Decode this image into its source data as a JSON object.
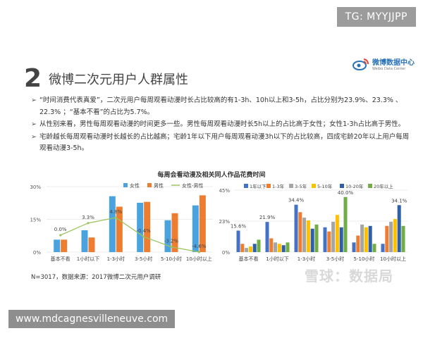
{
  "watermark_top": "TG: MYYJJPP",
  "watermark_bottom": "www.mdcagnesvilleneuve.com",
  "watermark_brand": "雪球：数据局",
  "heading": {
    "number": "2",
    "title": "微博二次元用户人群属性"
  },
  "logo": {
    "name_cn": "微博数据中心",
    "name_en": "Weibo Data Center"
  },
  "bullets": [
    "“时间消费代表真爱”，二次元用户每周观看动漫时长占比较高的有1-3h、10h以上和3-5h，占比分别为23.9%、23.3% 、22.3% ；“基本不看”的占比为5.7%。",
    "从性别来看，男性每周观看动漫的时间更多一些。男性每周观看动漫时长5h以上的占比高于女性；女性1-3h占比高于男性。",
    "宅龄越长每周观看动漫时长越长的占比越高；宅龄1年以下用户每周观看动漫3h以下的占比较高，四成宅龄20年以上用户每周观看动漫3-5h。"
  ],
  "chart_title": "每周会看动漫及相关同人作品花费时间",
  "footnote": "N=3017，数据来源：2017微博二次元用户调研",
  "colors": {
    "female": "#4aa3df",
    "male": "#ed7d31",
    "diff": "#9dc45f",
    "text": "#333333",
    "gridline": "#d9d9d9"
  },
  "chart_data": [
    {
      "type": "bar",
      "categories": [
        "基本不看",
        "1小时以下",
        "1-3小时",
        "3-5小时",
        "5-10小时",
        "10小时以上"
      ],
      "series": [
        {
          "name": "女性",
          "values": [
            5.7,
            10.0,
            25.6,
            22.6,
            14.6,
            21.4
          ]
        },
        {
          "name": "男性",
          "values": [
            5.7,
            6.7,
            20.8,
            23.0,
            17.8,
            26.0
          ]
        }
      ],
      "line_series": {
        "name": "女性-男性",
        "values": [
          0.0,
          3.3,
          4.8,
          -0.4,
          -3.2,
          -4.6
        ],
        "labels": [
          "0.0%",
          "3.3%",
          "4.8%",
          "-0.4%",
          "-3.2%",
          "-4.6%"
        ]
      },
      "yticks": [
        "0%",
        "15%",
        "30%"
      ],
      "ylim": [
        0,
        30
      ],
      "legend": "top-center"
    },
    {
      "type": "bar",
      "categories": [
        "基本不看",
        "1小时以下",
        "1-3小时",
        "3-5小时",
        "5-10小时",
        "10小时以上"
      ],
      "series": [
        {
          "name": "1年以下",
          "color": "#4472c4",
          "values": [
            15.6,
            21.9,
            34.4,
            18.0,
            7.0,
            6.0
          ]
        },
        {
          "name": "1-3年",
          "color": "#ed7d31",
          "values": [
            6.0,
            10.0,
            29.0,
            15.0,
            12.0,
            19.0
          ]
        },
        {
          "name": "3-5年",
          "color": "#a5a5a5",
          "values": [
            3.0,
            7.0,
            25.0,
            22.0,
            20.0,
            22.0
          ]
        },
        {
          "name": "5-10年",
          "color": "#ffc000",
          "values": [
            4.0,
            6.0,
            23.0,
            27.0,
            18.0,
            24.0
          ]
        },
        {
          "name": "10-20年",
          "color": "#2e5fa8",
          "values": [
            6.0,
            5.0,
            17.0,
            18.0,
            19.0,
            34.1
          ]
        },
        {
          "name": "20年以上",
          "color": "#70ad47",
          "values": [
            9.0,
            7.0,
            20.0,
            40.0,
            6.0,
            19.0
          ]
        }
      ],
      "data_labels": [
        {
          "category": "基本不看",
          "series": "1年以下",
          "text": "15.6%"
        },
        {
          "category": "1小时以下",
          "series": "1年以下",
          "text": "21.9%"
        },
        {
          "category": "1-3小时",
          "series": "1年以下",
          "text": "34.4%"
        },
        {
          "category": "3-5小时",
          "series": "20年以上",
          "text": "40.0%"
        },
        {
          "category": "10小时以上",
          "series": "10-20年",
          "text": "34.1%"
        }
      ],
      "yticks": [
        "0%",
        "23%",
        "45%"
      ],
      "ylim": [
        0,
        45
      ],
      "legend": "top-center"
    }
  ]
}
